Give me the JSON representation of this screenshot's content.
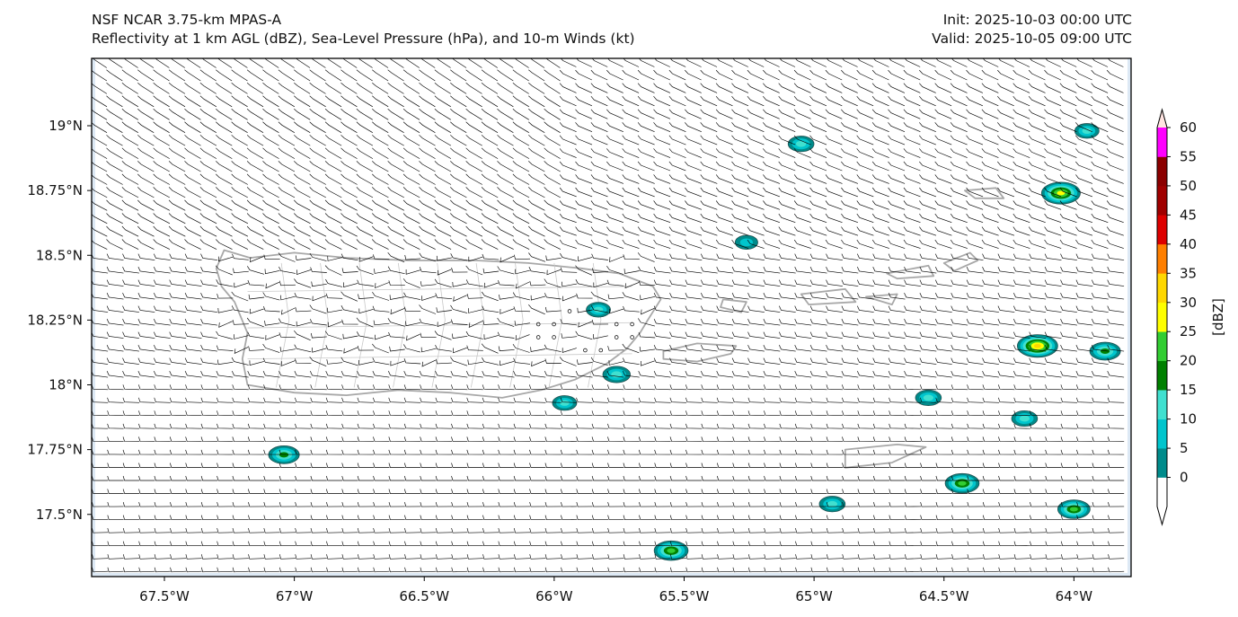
{
  "header": {
    "model": "NSF NCAR 3.75-km MPAS-A",
    "fields": "Reflectivity at 1 km AGL (dBZ), Sea-Level Pressure (hPa), and 10-m Winds (kt)",
    "init": "Init: 2025-10-03 00:00 UTC",
    "valid": "Valid: 2025-10-05 09:00 UTC"
  },
  "map": {
    "lon_range": [
      -67.78,
      -63.78
    ],
    "lat_range": [
      17.26,
      19.26
    ],
    "xticks": [
      {
        "value": -67.5,
        "label": "67.5°W"
      },
      {
        "value": -67.0,
        "label": "67°W"
      },
      {
        "value": -66.5,
        "label": "66.5°W"
      },
      {
        "value": -66.0,
        "label": "66°W"
      },
      {
        "value": -65.5,
        "label": "65.5°W"
      },
      {
        "value": -65.0,
        "label": "65°W"
      },
      {
        "value": -64.5,
        "label": "64.5°W"
      },
      {
        "value": -64.0,
        "label": "64°W"
      }
    ],
    "yticks": [
      {
        "value": 19.0,
        "label": "19°N"
      },
      {
        "value": 18.75,
        "label": "18.75°N"
      },
      {
        "value": 18.5,
        "label": "18.5°N"
      },
      {
        "value": 18.25,
        "label": "18.25°N"
      },
      {
        "value": 18.0,
        "label": "18°N"
      },
      {
        "value": 17.75,
        "label": "17.75°N"
      },
      {
        "value": 17.5,
        "label": "17.5°N"
      }
    ],
    "coast_color": "#a8a8a8",
    "ocean_tint": "#dde9f5",
    "barb_color": "#000000",
    "cells": [
      {
        "lon": -65.05,
        "lat": 18.93,
        "max": 12
      },
      {
        "lon": -63.95,
        "lat": 18.98,
        "max": 10
      },
      {
        "lon": -64.05,
        "lat": 18.74,
        "max": 28
      },
      {
        "lon": -65.26,
        "lat": 18.55,
        "max": 8
      },
      {
        "lon": -65.83,
        "lat": 18.29,
        "max": 10
      },
      {
        "lon": -64.14,
        "lat": 18.15,
        "max": 30
      },
      {
        "lon": -63.88,
        "lat": 18.13,
        "max": 18
      },
      {
        "lon": -65.76,
        "lat": 18.04,
        "max": 14
      },
      {
        "lon": -65.96,
        "lat": 17.93,
        "max": 10
      },
      {
        "lon": -64.56,
        "lat": 17.95,
        "max": 12
      },
      {
        "lon": -64.19,
        "lat": 17.87,
        "max": 12
      },
      {
        "lon": -67.04,
        "lat": 17.73,
        "max": 18
      },
      {
        "lon": -64.43,
        "lat": 17.62,
        "max": 22
      },
      {
        "lon": -64.93,
        "lat": 17.54,
        "max": 12
      },
      {
        "lon": -64.0,
        "lat": 17.52,
        "max": 20
      },
      {
        "lon": -65.55,
        "lat": 17.36,
        "max": 22
      }
    ]
  },
  "colorbar": {
    "label": "[dBZ]",
    "levels": [
      0,
      5,
      10,
      15,
      20,
      25,
      30,
      35,
      40,
      45,
      50,
      55,
      60
    ],
    "colors": [
      "#008b8b",
      "#00c5cd",
      "#40e0d0",
      "#008000",
      "#32cd32",
      "#ffff00",
      "#ffd700",
      "#ff7f00",
      "#dd0000",
      "#a00000",
      "#8b0000",
      "#ff00ff",
      "#ffe4e1"
    ],
    "below_color": "#ffffff"
  }
}
